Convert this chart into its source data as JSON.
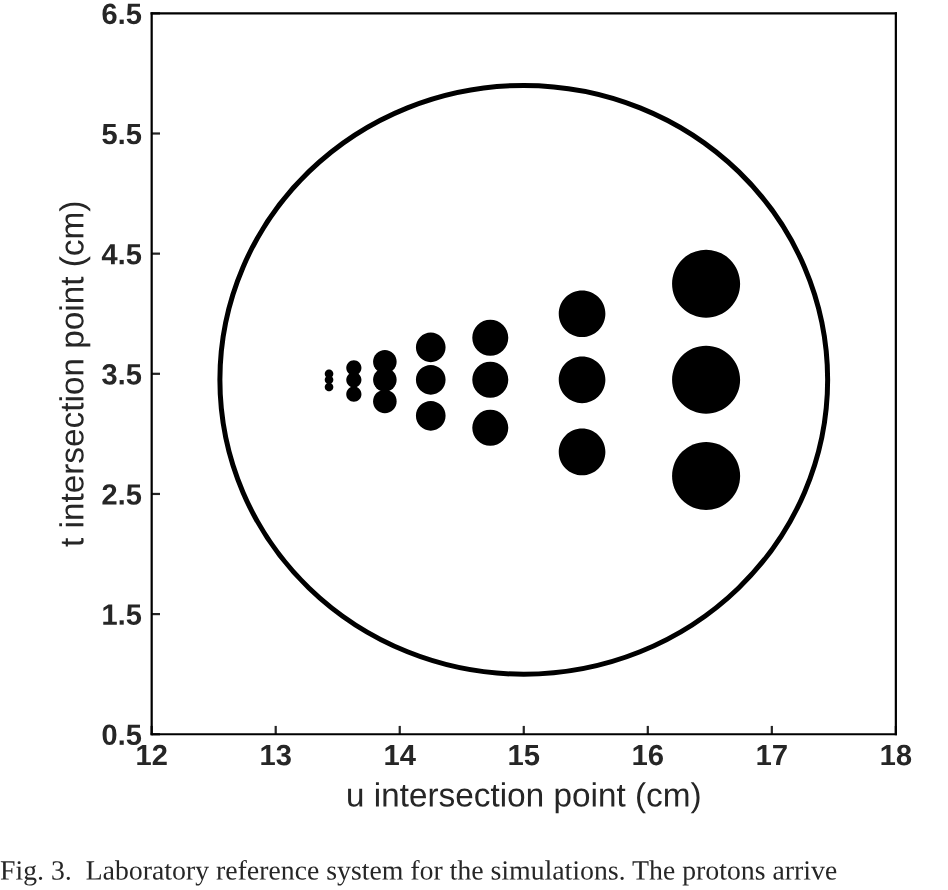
{
  "chart_data": {
    "type": "bubble",
    "xlabel": "u intersection point (cm)",
    "ylabel": "t intersection point (cm)",
    "xlim": [
      12,
      18
    ],
    "xticks": [
      12,
      13,
      14,
      15,
      16,
      17,
      18
    ],
    "ylim": [
      0.5,
      6.5
    ],
    "yticks": [
      0.5,
      1.5,
      2.5,
      3.5,
      4.5,
      5.5,
      6.5
    ],
    "grid": false,
    "legend": false,
    "marker": "circle",
    "annotations": [
      "Fig. 3.  Laboratory reference system for the simulations. The protons arrive"
    ],
    "series": [
      {
        "color": "#000000",
        "x": [
          13.43,
          13.43,
          13.43,
          13.63,
          13.63,
          13.63,
          13.88,
          13.88,
          13.88,
          14.25,
          14.25,
          14.25,
          14.73,
          14.73,
          14.73,
          15.47,
          15.47,
          15.47,
          16.47,
          16.47,
          16.47
        ],
        "values": [
          3.5,
          3.45,
          3.39,
          3.55,
          3.45,
          3.33,
          3.6,
          3.45,
          3.27,
          3.72,
          3.45,
          3.15,
          3.8,
          3.45,
          3.05,
          4.0,
          3.45,
          2.85,
          4.25,
          3.45,
          2.65
        ],
        "sizes": [
          0.016,
          0.016,
          0.016,
          0.05,
          0.05,
          0.05,
          0.12,
          0.12,
          0.12,
          0.19,
          0.19,
          0.19,
          0.28,
          0.28,
          0.28,
          0.47,
          0.47,
          0.47,
          1,
          1,
          1
        ]
      }
    ]
  }
}
